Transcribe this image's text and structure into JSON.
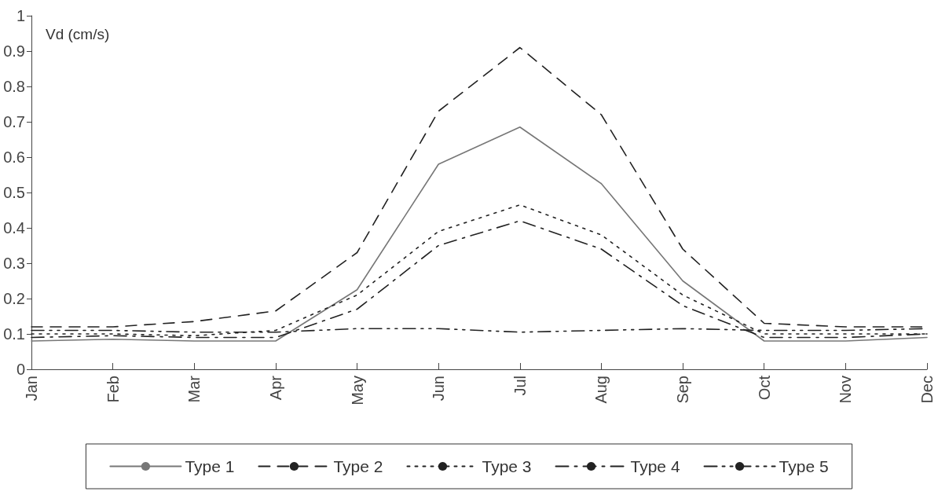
{
  "chart_data": {
    "type": "line",
    "ylabel": "Vd (cm/s)",
    "categories": [
      "Jan",
      "Feb",
      "Mar",
      "Apr",
      "May",
      "Jun",
      "Jul",
      "Aug",
      "Sep",
      "Oct",
      "Nov",
      "Dec"
    ],
    "series": [
      {
        "name": "Type 1",
        "color": "#777777",
        "line_style": "solid",
        "values": [
          0.08,
          0.085,
          0.08,
          0.08,
          0.225,
          0.58,
          0.685,
          0.525,
          0.25,
          0.08,
          0.08,
          0.09
        ]
      },
      {
        "name": "Type 2",
        "color": "#222222",
        "line_style": "dashed",
        "values": [
          0.12,
          0.12,
          0.135,
          0.165,
          0.33,
          0.73,
          0.91,
          0.72,
          0.34,
          0.13,
          0.12,
          0.12
        ]
      },
      {
        "name": "Type 3",
        "color": "#222222",
        "line_style": "dotted",
        "values": [
          0.1,
          0.1,
          0.095,
          0.11,
          0.21,
          0.39,
          0.465,
          0.38,
          0.21,
          0.1,
          0.1,
          0.1
        ]
      },
      {
        "name": "Type 4",
        "color": "#222222",
        "line_style": "dashdot",
        "values": [
          0.09,
          0.095,
          0.09,
          0.09,
          0.17,
          0.35,
          0.42,
          0.34,
          0.18,
          0.09,
          0.09,
          0.1
        ]
      },
      {
        "name": "Type 5",
        "color": "#222222",
        "line_style": "dashdotdot",
        "values": [
          0.11,
          0.11,
          0.105,
          0.105,
          0.115,
          0.115,
          0.105,
          0.11,
          0.115,
          0.11,
          0.11,
          0.115
        ]
      }
    ],
    "ylim": [
      0,
      1
    ],
    "yticks": [
      0,
      0.1,
      0.2,
      0.3,
      0.4,
      0.5,
      0.6,
      0.7,
      0.8,
      0.9,
      1
    ],
    "grid": false,
    "legend": "bottom",
    "marker": "none"
  }
}
